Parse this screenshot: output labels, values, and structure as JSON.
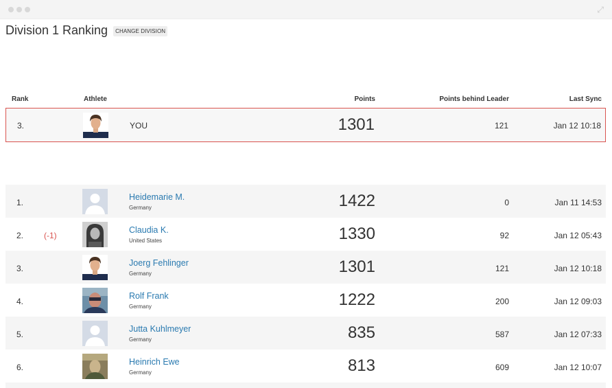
{
  "window": {
    "controls": [
      "close",
      "minimize",
      "zoom"
    ],
    "expand_glyph": "⤢"
  },
  "header": {
    "title": "Division 1 Ranking",
    "change_button": "CHANGE DIVISION"
  },
  "table": {
    "columns": {
      "rank": "Rank",
      "athlete": "Athlete",
      "points": "Points",
      "behind": "Points behind Leader",
      "sync": "Last Sync"
    }
  },
  "you_row": {
    "rank": "3.",
    "name": "YOU",
    "points": "1301",
    "behind": "121",
    "sync": "Jan 12 10:18",
    "avatar": "athlete-photo-icon"
  },
  "rows": [
    {
      "rank": "1.",
      "change": "",
      "name": "Heidemarie M.",
      "country": "Germany",
      "points": "1422",
      "behind": "0",
      "sync": "Jan 11 14:53",
      "avatar": "placeholder-avatar-icon"
    },
    {
      "rank": "2.",
      "change": "(-1)",
      "name": "Claudia K.",
      "country": "United States",
      "points": "1330",
      "behind": "92",
      "sync": "Jan 12 05:43",
      "avatar": "athlete-photo-icon"
    },
    {
      "rank": "3.",
      "change": "",
      "name": "Joerg Fehlinger",
      "country": "Germany",
      "points": "1301",
      "behind": "121",
      "sync": "Jan 12 10:18",
      "avatar": "athlete-photo-icon"
    },
    {
      "rank": "4.",
      "change": "",
      "name": "Rolf Frank",
      "country": "Germany",
      "points": "1222",
      "behind": "200",
      "sync": "Jan 12 09:03",
      "avatar": "athlete-photo-icon"
    },
    {
      "rank": "5.",
      "change": "",
      "name": "Jutta Kuhlmeyer",
      "country": "Germany",
      "points": "835",
      "behind": "587",
      "sync": "Jan 12 07:33",
      "avatar": "placeholder-avatar-icon"
    },
    {
      "rank": "6.",
      "change": "",
      "name": "Heinrich Ewe",
      "country": "Germany",
      "points": "813",
      "behind": "609",
      "sync": "Jan 12 10:07",
      "avatar": "athlete-photo-icon"
    }
  ],
  "colors": {
    "link": "#2a7ab0",
    "highlight_border": "#d9534f",
    "rank_change": "#d9534f",
    "row_shade": "#f5f5f5"
  }
}
